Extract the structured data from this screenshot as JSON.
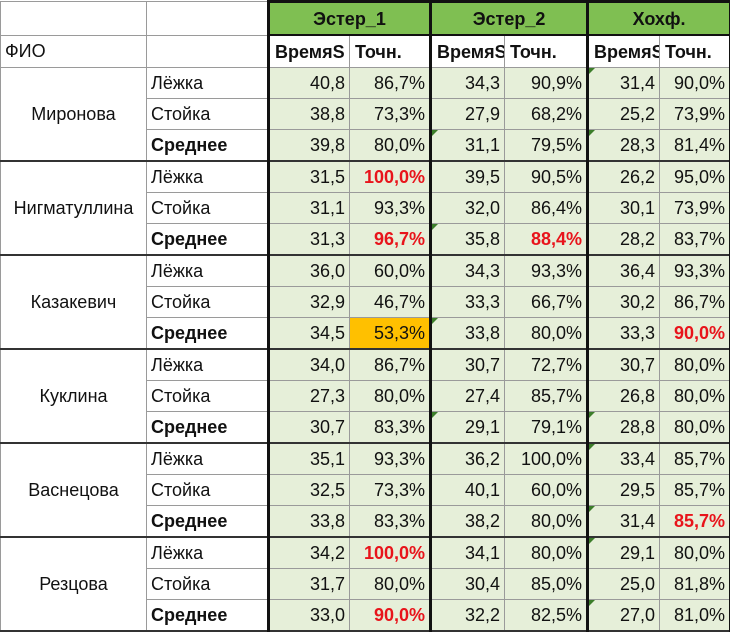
{
  "header": {
    "fio_label": "ФИО",
    "groups": [
      "Эстер_1",
      "Эстер_2",
      "Хохф."
    ],
    "sub": [
      "ВремяS",
      "Точн.",
      "ВремяS",
      "Точн.",
      "ВремяS",
      "Точн."
    ]
  },
  "colors": {
    "header_green": "#7fbf52",
    "cell_green": "#e6efd9",
    "highlight_red": "#e8141b",
    "highlight_yellow": "#ffc000"
  },
  "people": [
    {
      "name": "Миронова",
      "rows": [
        {
          "label": "Лёжка",
          "v": [
            "40,8",
            "86,7%",
            "34,3",
            "90,9%",
            "31,4",
            "90,0%"
          ]
        },
        {
          "label": "Стойка",
          "v": [
            "38,8",
            "73,3%",
            "27,9",
            "68,2%",
            "25,2",
            "73,9%"
          ]
        },
        {
          "label": "Среднее",
          "v": [
            "39,8",
            "80,0%",
            "31,1",
            "79,5%",
            "28,3",
            "81,4%"
          ]
        }
      ]
    },
    {
      "name": "Нигматуллина",
      "rows": [
        {
          "label": "Лёжка",
          "v": [
            "31,5",
            "100,0%",
            "39,5",
            "90,5%",
            "26,2",
            "95,0%"
          ]
        },
        {
          "label": "Стойка",
          "v": [
            "31,1",
            "93,3%",
            "32,0",
            "86,4%",
            "30,1",
            "73,9%"
          ]
        },
        {
          "label": "Среднее",
          "v": [
            "31,3",
            "96,7%",
            "35,8",
            "88,4%",
            "28,2",
            "83,7%"
          ]
        }
      ]
    },
    {
      "name": "Казакевич",
      "rows": [
        {
          "label": "Лёжка",
          "v": [
            "36,0",
            "60,0%",
            "34,3",
            "93,3%",
            "36,4",
            "93,3%"
          ]
        },
        {
          "label": "Стойка",
          "v": [
            "32,9",
            "46,7%",
            "33,3",
            "66,7%",
            "30,2",
            "86,7%"
          ]
        },
        {
          "label": "Среднее",
          "v": [
            "34,5",
            "53,3%",
            "33,8",
            "80,0%",
            "33,3",
            "90,0%"
          ]
        }
      ]
    },
    {
      "name": "Куклина",
      "rows": [
        {
          "label": "Лёжка",
          "v": [
            "34,0",
            "86,7%",
            "30,7",
            "72,7%",
            "30,7",
            "80,0%"
          ]
        },
        {
          "label": "Стойка",
          "v": [
            "27,3",
            "80,0%",
            "27,4",
            "85,7%",
            "26,8",
            "80,0%"
          ]
        },
        {
          "label": "Среднее",
          "v": [
            "30,7",
            "83,3%",
            "29,1",
            "79,1%",
            "28,8",
            "80,0%"
          ]
        }
      ]
    },
    {
      "name": "Васнецова",
      "rows": [
        {
          "label": "Лёжка",
          "v": [
            "35,1",
            "93,3%",
            "36,2",
            "100,0%",
            "33,4",
            "85,7%"
          ]
        },
        {
          "label": "Стойка",
          "v": [
            "32,5",
            "73,3%",
            "40,1",
            "60,0%",
            "29,5",
            "85,7%"
          ]
        },
        {
          "label": "Среднее",
          "v": [
            "33,8",
            "83,3%",
            "38,2",
            "80,0%",
            "31,4",
            "85,7%"
          ]
        }
      ]
    },
    {
      "name": "Резцова",
      "rows": [
        {
          "label": "Лёжка",
          "v": [
            "34,2",
            "100,0%",
            "34,1",
            "80,0%",
            "29,1",
            "80,0%"
          ]
        },
        {
          "label": "Стойка",
          "v": [
            "31,7",
            "80,0%",
            "30,4",
            "85,0%",
            "25,0",
            "81,8%"
          ]
        },
        {
          "label": "Среднее",
          "v": [
            "33,0",
            "90,0%",
            "32,2",
            "82,5%",
            "27,0",
            "81,0%"
          ]
        }
      ]
    }
  ]
}
